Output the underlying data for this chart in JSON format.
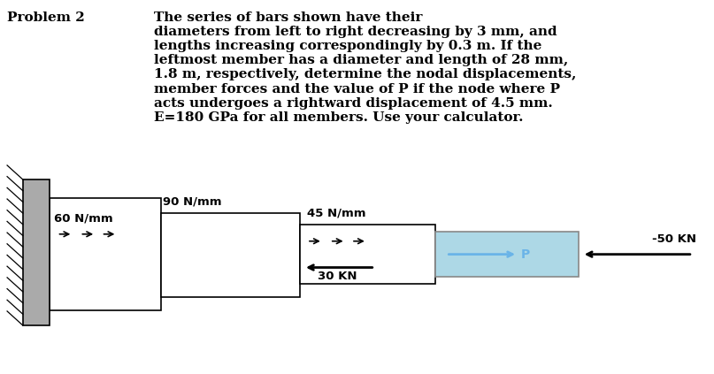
{
  "title_left": "Problem 2",
  "desc": "The series of bars shown have their\ndiameters from left to right decreasing by 3 mm, and\nlengths increasing correspondingly by 0.3 m. If the\nleftmost member has a diameter and length of 28 mm,\n1.8 m, respectively, determine the nodal displacements,\nmember forces and the value of P if the node where P\nacts undergoes a rightward displacement of 4.5 mm.\nE=180 GPa for all members. Use your calculator.",
  "label_60": "60 N/mm",
  "label_90": "90 N/mm",
  "label_45": "45 N/mm",
  "label_30kn": "30 KN",
  "label_p": "P",
  "label_50kn": "-50 KN",
  "bg_color": "#ffffff",
  "font_size_text": 11,
  "hatch_color": "#aaaaaa",
  "bar_white": "#ffffff",
  "bar_blue": "#add8e6",
  "arrow_blue": "#6ab4e8"
}
